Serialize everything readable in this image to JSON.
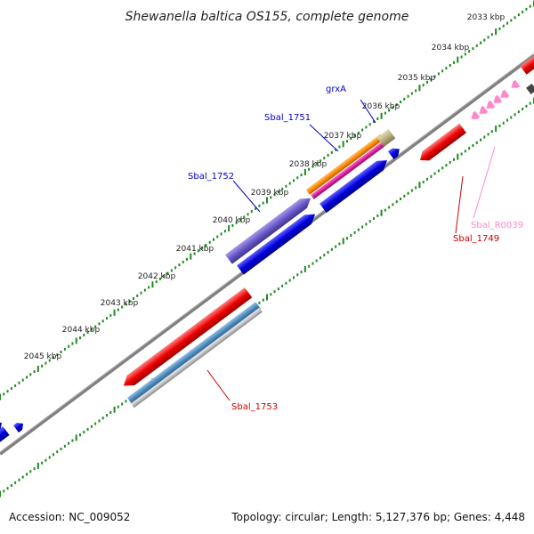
{
  "title": "Shewanella baltica OS155, complete genome",
  "footer": {
    "accession": "Accession: NC_009052",
    "summary": "Topology: circular; Length: 5,127,376 bp; Genes: 4,448"
  },
  "ticks": [
    "2033 kbp",
    "2034 kbp",
    "2035 kbp",
    "2036 kbp",
    "2037 kbp",
    "2038 kbp",
    "2039 kbp",
    "2040 kbp",
    "2041 kbp",
    "2042 kbp",
    "2043 kbp",
    "2044 kbp",
    "2045 kbp"
  ],
  "gene_labels": {
    "grxA": "grxA",
    "sbal_1751": "Sbal_1751",
    "sbal_1752": "Sbal_1752",
    "sbal_1753": "Sbal_1753",
    "sbal_1749": "Sbal_1749",
    "sbal_r0039": "Sbal_R0039"
  },
  "colors": {
    "backbone": "#808080",
    "tick": "#1e8a1e",
    "cds_forward": "#ee0000",
    "cds_blue": "#0000dd",
    "gene_purple": "#6a5acd",
    "gene_orange": "#ff8c00",
    "gene_magenta": "#e020a0",
    "gene_khaki": "#b8b080",
    "gene_steelblue": "#4682b4",
    "gene_gray": "#c0c0c0",
    "rna_pink": "#ff88cc",
    "label_blue": "#0000cc",
    "label_red": "#cc0000",
    "label_pink": "#ff88cc"
  }
}
